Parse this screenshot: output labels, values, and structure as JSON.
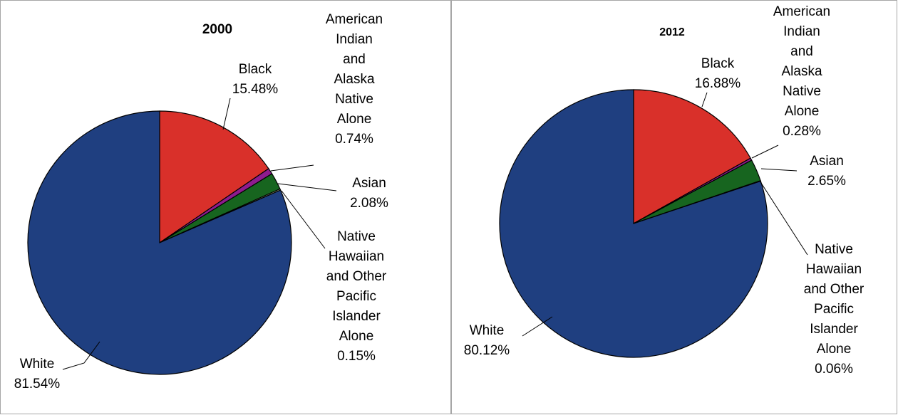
{
  "chart_data": [
    {
      "type": "pie",
      "title": "2000",
      "categories": [
        "Black",
        "American Indian and Alaska Native Alone",
        "Asian",
        "Native Hawaiian and Other Pacific Islander Alone",
        "White"
      ],
      "values": [
        15.48,
        0.74,
        2.08,
        0.15,
        81.54
      ],
      "value_labels": [
        "15.48%",
        "0.74%",
        "2.08%",
        "0.15%",
        "81.54%"
      ],
      "colors": [
        "#d9302a",
        "#8e1b8e",
        "#17651f",
        "#c9dba3",
        "#1f3f80"
      ]
    },
    {
      "type": "pie",
      "title": "2012",
      "categories": [
        "Black",
        "American Indian and Alaska Native Alone",
        "Asian",
        "Native Hawaiian and Other Pacific Islander Alone",
        "White"
      ],
      "values": [
        16.88,
        0.28,
        2.65,
        0.06,
        80.12
      ],
      "value_labels": [
        "16.88%",
        "0.28%",
        "2.65%",
        "0.06%",
        "80.12%"
      ],
      "colors": [
        "#d9302a",
        "#8e1b8e",
        "#17651f",
        "#c9dba3",
        "#1f3f80"
      ]
    }
  ]
}
